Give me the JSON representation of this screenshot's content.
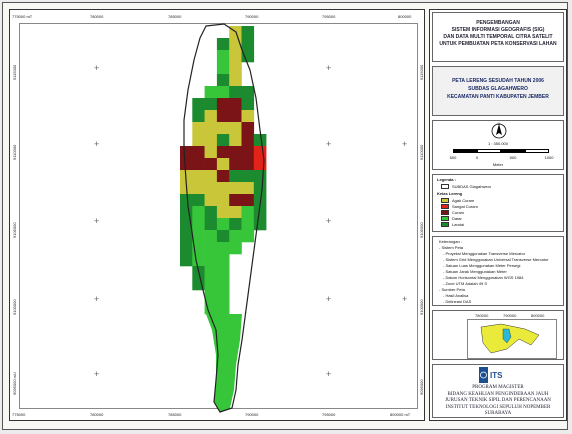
{
  "map_frame": {
    "top_ticks": [
      "775000 mT",
      "780000",
      "785000",
      "790000",
      "795000",
      "800000"
    ],
    "bottom_ticks": [
      "775000",
      "780000",
      "785000",
      "790000",
      "795000",
      "800000 mT"
    ],
    "left_ticks": [
      "9115000",
      "9110000",
      "9105000",
      "9100000",
      "9095000 mU"
    ],
    "right_ticks": [
      "9115000",
      "9110000",
      "9105000",
      "9100000",
      "9095000"
    ]
  },
  "watershed": {
    "columns": 7,
    "rows": 24,
    "colors": {
      "Agak Curam": "#c9c63a",
      "Sangat Curam": "#e2231a",
      "Curam": "#7a1416",
      "Datar": "#37c63a",
      "Landai": "#1c8a2e"
    },
    "cells": [
      "----AL-",
      "---LAL-",
      "---DAL-",
      "---DA--",
      "---LA--",
      "--DDLL-",
      "-LLCCL-",
      "-LACCA-",
      "-AAAAC-",
      "-AALACL",
      "CCACCCS",
      "CCCACCS",
      "AAACLLL",
      "AAAAAAL",
      "LLAACCL",
      "LDLAADL",
      "LDLDLDL",
      "LDDLDD-",
      "LDDDD--",
      "LDDD---",
      "-LDD---",
      "-LDD---",
      "--DD---",
      "--DD---"
    ],
    "lower_body_color": "#37c63a"
  },
  "legend": {
    "header": {
      "line1": "PENGEMBANGAN",
      "line2": "SISTEM INFORMASI GEOGRAFIS (SIG)",
      "line3": "DAN DATA MULTI TEMPORAL CITRA SATELIT",
      "line4": "UNTUK PEMBUATAN PETA KONSERVASI LAHAN"
    },
    "map_title": {
      "line1": "PETA LERENG SESUDAH TAHUN 2006",
      "line2": "SUBDAS GLAGAHWERO",
      "line3": "KECAMATAN PANTI KABUPATEN JEMBER"
    },
    "north": "U",
    "scale_text": "1 : 350.000",
    "scale_ticks": [
      "500",
      "0",
      "500",
      "1000"
    ],
    "scale_unit": "Meter",
    "legenda_title": "Legenda :",
    "boundary_label": "SUBDAS Glagahwero",
    "kelas_title": "Kelas Lereng",
    "classes": [
      {
        "label": "Agak Curam",
        "color": "#c9c63a"
      },
      {
        "label": "Sangat Curam",
        "color": "#e2231a"
      },
      {
        "label": "Curam",
        "color": "#7a1416"
      },
      {
        "label": "Datar",
        "color": "#37c63a"
      },
      {
        "label": "Landai",
        "color": "#1c8a2e"
      }
    ],
    "keterangan": [
      "Keterangan :",
      "- Sistem Peta",
      "  - Proyeksi Menggunakan Transverse Mercator",
      "  - Sistem Grid Menggunakan Universal Transverse Mercator",
      "  - Satuan Luas Menggunakan Meter Persegi",
      "  - Satuan Jarak Menggunakan Meter",
      "  - Datum Horisontal Menggunakan WGS 1984",
      "  - Zone UTM Adalah 49 S",
      "- Sumber Peta",
      "  - Hasil Analisa",
      "  - Delineasi DAS"
    ],
    "inset_ticks": [
      "780000",
      "790000",
      "800000"
    ],
    "logo_text": "ITS",
    "institution": [
      "PROGRAM MAGISTER",
      "BIDANG KEAHLIAN PENGINDERAAN JAUH",
      "JURUSAN TEKNIK SIPIL DAN PERENCANAAN",
      "INSTITUT TEKNOLOGI SEPULUH NOPEMBER",
      "SURABAYA"
    ]
  }
}
